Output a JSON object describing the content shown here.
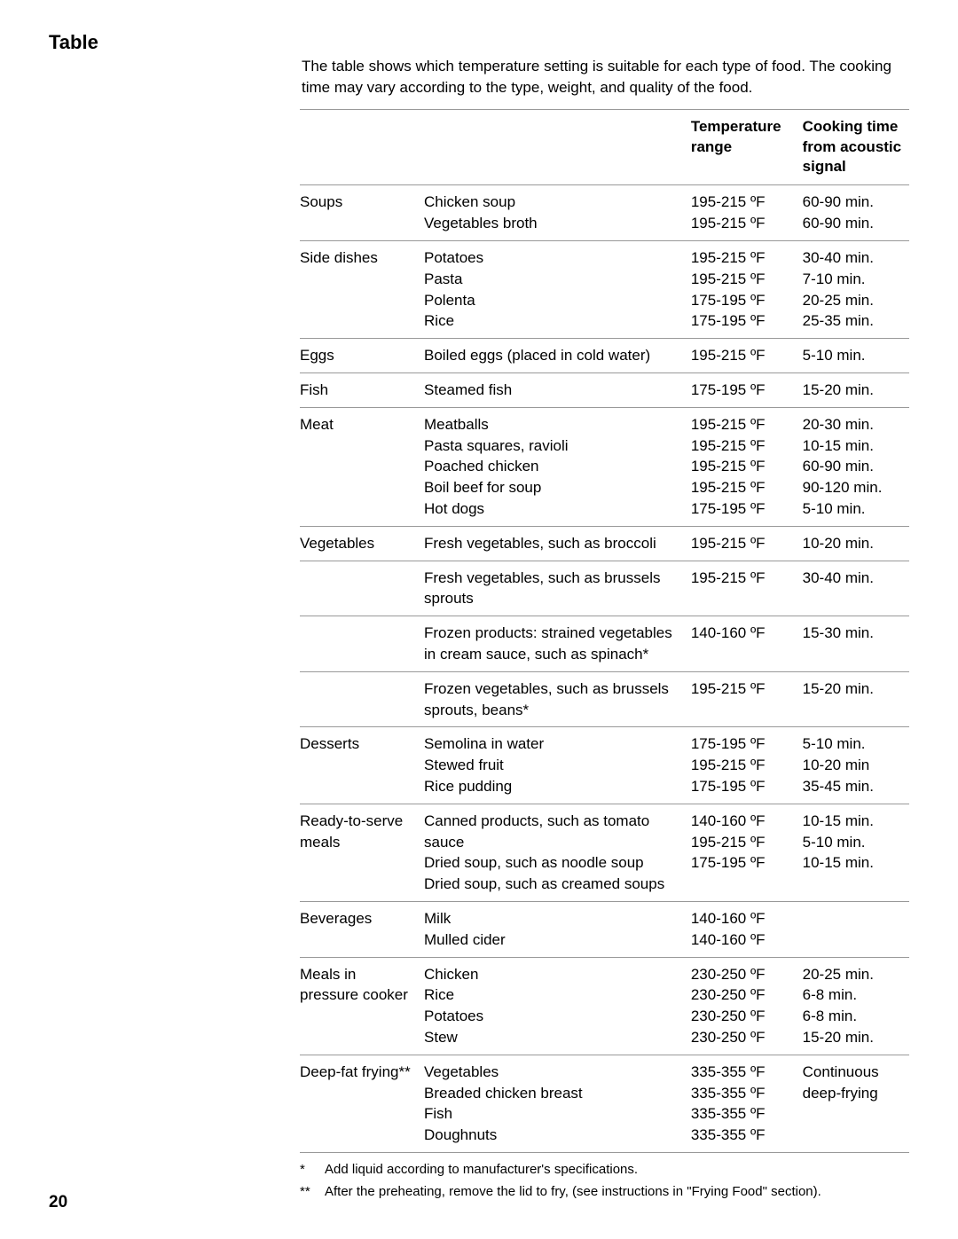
{
  "page": {
    "title": "Table",
    "intro": "The table shows which temperature setting is suitable for each type of food. The cooking time may vary according to the type, weight, and quality of the food.",
    "pageNumber": "20"
  },
  "table": {
    "headers": {
      "col1": "",
      "col2": "",
      "col3": "Temperature range",
      "col4": "Cooking time from acoustic signal"
    },
    "groups": [
      {
        "category": "Soups",
        "items": [
          {
            "food": "Chicken soup",
            "temp": "195-215 ºF",
            "time": "60-90 min."
          },
          {
            "food": "Vegetables broth",
            "temp": "195-215 ºF",
            "time": "60-90 min."
          }
        ]
      },
      {
        "category": "Side dishes",
        "items": [
          {
            "food": "Potatoes",
            "temp": "195-215 ºF",
            "time": "30-40 min."
          },
          {
            "food": "Pasta",
            "temp": "195-215 ºF",
            "time": "7-10 min."
          },
          {
            "food": "Polenta",
            "temp": "175-195 ºF",
            "time": "20-25 min."
          },
          {
            "food": "Rice",
            "temp": "175-195 ºF",
            "time": "25-35 min."
          }
        ]
      },
      {
        "category": "Eggs",
        "items": [
          {
            "food": "Boiled eggs (placed in cold water)",
            "temp": "195-215 ºF",
            "time": "5-10 min."
          }
        ]
      },
      {
        "category": "Fish",
        "items": [
          {
            "food": "Steamed fish",
            "temp": "175-195 ºF",
            "time": "15-20 min."
          }
        ]
      },
      {
        "category": "Meat",
        "items": [
          {
            "food": "Meatballs",
            "temp": "195-215 ºF",
            "time": "20-30 min."
          },
          {
            "food": "Pasta squares, ravioli",
            "temp": "195-215 ºF",
            "time": "10-15 min."
          },
          {
            "food": "Poached chicken",
            "temp": "195-215 ºF",
            "time": "60-90 min."
          },
          {
            "food": "Boil beef for soup",
            "temp": "195-215 ºF",
            "time": "90-120 min."
          },
          {
            "food": "Hot dogs",
            "temp": "175-195 ºF",
            "time": "5-10 min."
          }
        ]
      },
      {
        "category": "Vegetables",
        "subrows": true,
        "items": [
          {
            "food": "Fresh vegetables, such as broccoli",
            "temp": "195-215 ºF",
            "time": "10-20 min."
          },
          {
            "food": "Fresh vegetables, such as brussels sprouts",
            "temp": "195-215 ºF",
            "time": "30-40 min."
          },
          {
            "food": "Frozen products: strained vegetables in cream sauce, such as spinach*",
            "temp": "140-160 ºF",
            "time": "15-30 min."
          },
          {
            "food": "Frozen vegetables, such as brussels sprouts, beans*",
            "temp": "195-215 ºF",
            "time": "15-20 min."
          }
        ]
      },
      {
        "category": "Desserts",
        "items": [
          {
            "food": "Semolina in water",
            "temp": "175-195 ºF",
            "time": "5-10 min."
          },
          {
            "food": "Stewed fruit",
            "temp": "195-215 ºF",
            "time": "10-20 min"
          },
          {
            "food": "Rice pudding",
            "temp": "175-195 ºF",
            "time": "35-45 min."
          }
        ]
      },
      {
        "category": "Ready-to-serve meals",
        "items": [
          {
            "food": "Canned products, such as tomato sauce",
            "temp": "140-160 ºF",
            "time": "10-15 min."
          },
          {
            "food": "Dried soup, such as noodle soup",
            "temp": "195-215 ºF",
            "time": "5-10 min."
          },
          {
            "food": "Dried soup, such as creamed soups",
            "temp": "175-195 ºF",
            "time": "10-15 min."
          }
        ]
      },
      {
        "category": "Beverages",
        "items": [
          {
            "food": "Milk",
            "temp": "140-160 ºF",
            "time": ""
          },
          {
            "food": "Mulled cider",
            "temp": "140-160 ºF",
            "time": ""
          }
        ]
      },
      {
        "category": "Meals in pressure cooker",
        "items": [
          {
            "food": "Chicken",
            "temp": "230-250 ºF",
            "time": "20-25 min."
          },
          {
            "food": "Rice",
            "temp": "230-250 ºF",
            "time": "6-8 min."
          },
          {
            "food": "Potatoes",
            "temp": "230-250 ºF",
            "time": "6-8 min."
          },
          {
            "food": "Stew",
            "temp": "230-250 ºF",
            "time": "15-20 min."
          }
        ]
      },
      {
        "category": "Deep-fat frying**",
        "sharedTime": "Continuous deep-frying",
        "items": [
          {
            "food": "Vegetables",
            "temp": "335-355 ºF"
          },
          {
            "food": "Breaded chicken breast",
            "temp": "335-355 ºF"
          },
          {
            "food": "Fish",
            "temp": "335-355 ºF"
          },
          {
            "food": "Doughnuts",
            "temp": "335-355 ºF"
          }
        ]
      }
    ]
  },
  "footnotes": [
    {
      "marker": "*",
      "text": "Add liquid according to manufacturer's specifications."
    },
    {
      "marker": "**",
      "text": "After the preheating, remove the lid to fry, (see instructions in \"Frying Food\" section)."
    }
  ]
}
